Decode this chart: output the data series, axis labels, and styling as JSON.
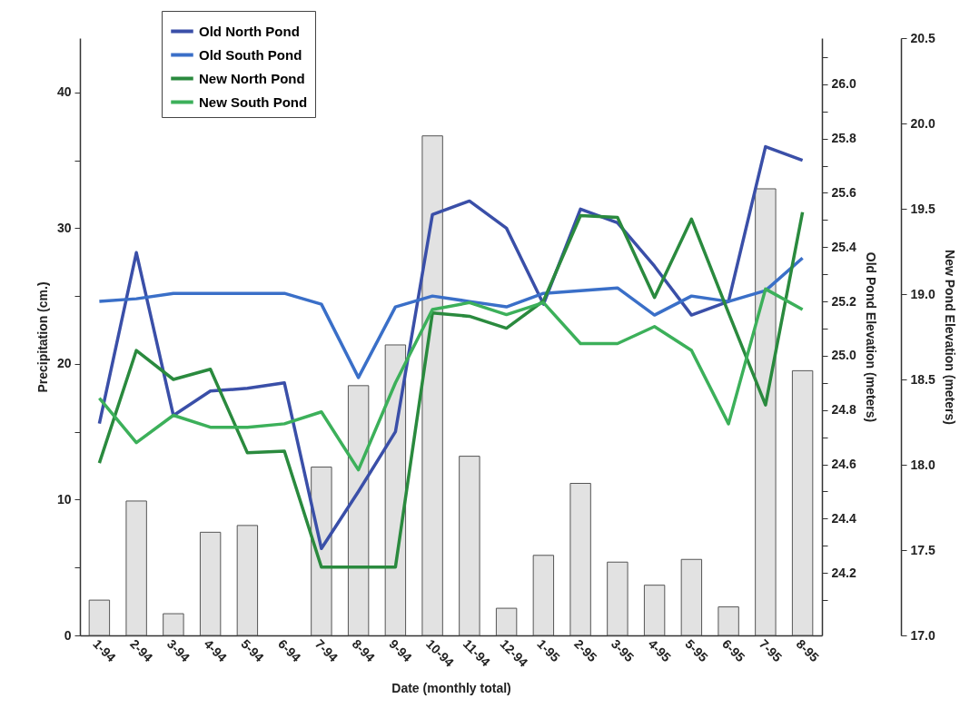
{
  "chart_data": {
    "type": "line",
    "xlabel": "Date (monthly total)",
    "ylabel": "Precipitation (cm.)",
    "y2label": "Old Pond Elevation (meters)",
    "y3label": "New Pond Elevation (meters)",
    "categories": [
      "1-94",
      "2-94",
      "3-94",
      "4-94",
      "5-94",
      "6-94",
      "7-94",
      "8-94",
      "9-94",
      "10-94",
      "11-94",
      "12-94",
      "1-95",
      "2-95",
      "3-95",
      "4-95",
      "5-95",
      "6-95",
      "7-95",
      "8-95"
    ],
    "series": [
      {
        "type": "bar",
        "color": "#e2e2e2",
        "values": [
          2.6,
          9.9,
          1.6,
          7.6,
          8.1,
          null,
          12.4,
          18.4,
          21.4,
          36.8,
          13.2,
          2.0,
          5.9,
          11.2,
          5.4,
          3.7,
          5.6,
          2.1,
          32.9,
          19.5
        ]
      },
      {
        "name": "Old North Pond",
        "color": "#3a4fa8",
        "axis": "y2",
        "values": [
          24.75,
          25.38,
          24.78,
          24.87,
          24.88,
          24.9,
          24.29,
          24.5,
          24.72,
          25.52,
          25.57,
          25.47,
          25.19,
          25.54,
          25.49,
          25.33,
          25.15,
          25.2,
          25.77,
          25.72
        ]
      },
      {
        "name": "Old South Pond",
        "color": "#3a6fc8",
        "axis": "y2",
        "values": [
          25.2,
          25.21,
          25.23,
          25.23,
          25.23,
          25.23,
          25.19,
          24.92,
          25.18,
          25.22,
          25.2,
          25.18,
          25.23,
          25.24,
          25.25,
          25.15,
          25.22,
          25.2,
          25.24,
          25.36
        ]
      },
      {
        "name": "New North Pond",
        "color": "#2a8a3e",
        "axis": "y3",
        "values": [
          18.01,
          18.67,
          18.5,
          18.56,
          18.07,
          18.08,
          17.4,
          17.4,
          17.4,
          18.89,
          18.87,
          18.8,
          18.96,
          19.46,
          19.45,
          18.98,
          19.44,
          18.89,
          18.35,
          19.48
        ]
      },
      {
        "name": "New South Pond",
        "color": "#3cb05a",
        "axis": "y3",
        "values": [
          18.39,
          18.13,
          18.29,
          18.22,
          18.22,
          18.24,
          18.31,
          17.97,
          18.48,
          18.91,
          18.95,
          18.88,
          18.95,
          18.71,
          18.71,
          18.81,
          18.67,
          18.24,
          19.03,
          18.91
        ]
      }
    ],
    "ylim": [
      0,
      44
    ],
    "yticks": [
      0,
      {
        "value": 5,
        "label": null
      },
      10,
      {
        "value": 15,
        "label": null
      },
      20,
      {
        "value": 25,
        "label": null
      },
      30,
      {
        "value": 35,
        "label": null
      },
      40
    ],
    "y2lim": [
      23.97,
      26.17
    ],
    "y2ticks": [
      {
        "value": 24.1,
        "label": null
      },
      {
        "value": 24.2,
        "label": "24.2"
      },
      {
        "value": 24.3,
        "label": null
      },
      {
        "value": 24.4,
        "label": "24.4"
      },
      {
        "value": 24.5,
        "label": null
      },
      {
        "value": 24.6,
        "label": "24.6"
      },
      {
        "value": 24.7,
        "label": null
      },
      {
        "value": 24.8,
        "label": "24.8"
      },
      {
        "value": 24.9,
        "label": null
      },
      {
        "value": 25,
        "label": "25.0"
      },
      {
        "value": 25.1,
        "label": null
      },
      {
        "value": 25.2,
        "label": "25.2"
      },
      {
        "value": 25.3,
        "label": null
      },
      {
        "value": 25.4,
        "label": "25.4"
      },
      {
        "value": 25.5,
        "label": null
      },
      {
        "value": 25.6,
        "label": "25.6"
      },
      {
        "value": 25.7,
        "label": null
      },
      {
        "value": 25.8,
        "label": "25.8"
      },
      {
        "value": 25.9,
        "label": null
      },
      {
        "value": 26,
        "label": "26.0"
      },
      {
        "value": 26.1,
        "label": null
      }
    ],
    "y3lim": [
      17,
      20.5
    ],
    "y3ticks": [
      {
        "value": 17,
        "label": "17.0"
      },
      17.5,
      {
        "value": 18,
        "label": "18.0"
      },
      18.5,
      {
        "value": 19,
        "label": "19.0"
      },
      19.5,
      {
        "value": 20,
        "label": "20.0"
      },
      20.5
    ],
    "legend": "top left",
    "line_style": "solid",
    "grid": false
  }
}
